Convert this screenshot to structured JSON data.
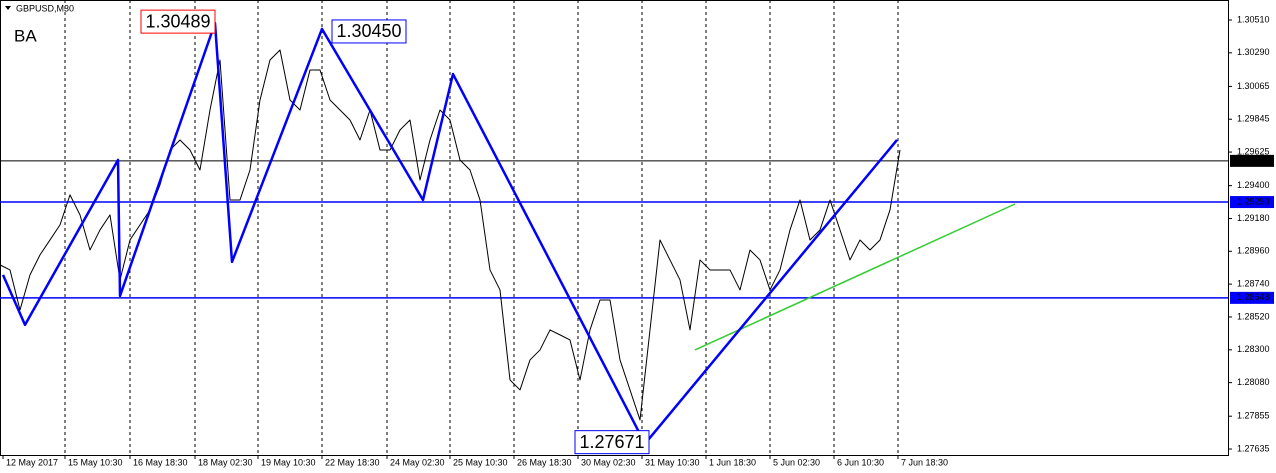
{
  "chart_data": {
    "type": "line",
    "title": "GBPUSD,M30",
    "annotation": "BA",
    "annotation_color": "#ff0000",
    "xlim": [
      0,
      122.8
    ],
    "ylim": [
      1.27595,
      1.30644
    ],
    "xticks": [
      {
        "value": 0.3,
        "label": "12 May 2017"
      },
      {
        "value": 6.5,
        "label": "15 May 10:30"
      },
      {
        "value": 13,
        "label": "16 May 18:30"
      },
      {
        "value": 19.5,
        "label": "18 May 02:30"
      },
      {
        "value": 25.8,
        "label": "19 May 10:30"
      },
      {
        "value": 32.2,
        "label": "22 May 18:30"
      },
      {
        "value": 38.7,
        "label": "24 May 02:30"
      },
      {
        "value": 45,
        "label": "25 May 10:30"
      },
      {
        "value": 51.4,
        "label": "26 May 18:30"
      },
      {
        "value": 57.8,
        "label": "30 May 02:30"
      },
      {
        "value": 64.2,
        "label": "31 May 10:30"
      },
      {
        "value": 70.6,
        "label": "1 Jun 18:30"
      },
      {
        "value": 77,
        "label": "5 Jun 02:30"
      },
      {
        "value": 83.4,
        "label": "6 Jun 10:30"
      },
      {
        "value": 89.8,
        "label": "7 Jun 18:30"
      }
    ],
    "yticks": [
      {
        "value": 1.3051,
        "label": "1.30510"
      },
      {
        "value": 1.3029,
        "label": "1.30290"
      },
      1.30065,
      1.29845,
      {
        "value": 1.29625,
        "label": "1.29625"
      },
      {
        "value": 1.294,
        "label": "1.29400"
      },
      {
        "value": 1.2918,
        "label": "1.29180"
      },
      {
        "value": 1.2896,
        "label": "1.28960"
      },
      {
        "value": 1.2874,
        "label": "1.28740"
      },
      {
        "value": 1.2852,
        "label": "1.28520"
      },
      {
        "value": 1.283,
        "label": "1.28300"
      },
      {
        "value": 1.2808,
        "label": "1.28080"
      },
      1.27855,
      1.27635
    ],
    "grid": true,
    "levels": [
      {
        "value": 1.29566,
        "color": "#000000"
      },
      {
        "value": 1.2929,
        "label": "1.29290",
        "color": "#0000ff"
      },
      {
        "value": 1.28648,
        "color": "#0000ff"
      }
    ],
    "price": {
      "color": "#000000",
      "x": [
        0,
        1,
        2,
        3,
        4,
        5,
        6,
        7,
        8,
        9,
        10,
        11,
        12,
        13,
        14,
        15,
        16,
        17,
        18,
        19,
        20,
        21,
        22,
        23,
        24,
        25,
        26,
        27,
        28,
        29,
        30,
        31,
        32,
        33,
        34,
        35,
        36,
        37,
        38,
        39,
        40,
        41,
        42,
        43,
        44,
        45,
        46,
        47,
        48,
        49,
        50,
        51,
        52,
        53,
        54,
        55,
        56,
        57,
        58,
        59,
        60,
        61,
        62,
        63,
        64,
        65,
        66,
        67,
        68,
        69,
        70,
        71,
        72,
        73,
        74,
        75,
        76,
        77,
        78,
        79,
        80,
        81,
        82,
        83,
        84,
        85,
        86,
        87,
        88,
        89,
        90
      ],
      "values": [
        1.28869,
        1.28835,
        1.28567,
        1.28802,
        1.28936,
        1.29036,
        1.29137,
        1.29338,
        1.29204,
        1.28969,
        1.29103,
        1.29204,
        1.28768,
        1.29036,
        1.29137,
        1.29237,
        1.29405,
        1.29639,
        1.29706,
        1.29639,
        1.29505,
        1.29907,
        1.30242,
        1.29304,
        1.29304,
        1.29505,
        1.29974,
        1.30242,
        1.30309,
        1.29974,
        1.29907,
        1.30175,
        1.30175,
        1.29974,
        1.29907,
        1.2984,
        1.29706,
        1.29907,
        1.29639,
        1.29639,
        1.29773,
        1.2984,
        1.29438,
        1.29706,
        1.29907,
        1.2984,
        1.29572,
        1.29505,
        1.29304,
        1.28835,
        1.28701,
        1.28098,
        1.28031,
        1.28232,
        1.28299,
        1.28433,
        1.284,
        1.28366,
        1.28098,
        1.28433,
        1.28634,
        1.28634,
        1.28232,
        1.28031,
        1.2783,
        1.28433,
        1.29036,
        1.28902,
        1.28768,
        1.28433,
        1.28902,
        1.28835,
        1.28835,
        1.28835,
        1.28701,
        1.28969,
        1.28902,
        1.28701,
        1.28835,
        1.29103,
        1.29304,
        1.29036,
        1.29103,
        1.29304,
        1.29103,
        1.28902,
        1.29036,
        1.28969,
        1.29036,
        1.29237,
        1.29639
      ]
    },
    "zigzag": {
      "color": "#0000ff",
      "x": [
        0.3,
        2.5,
        11.8,
        12,
        21.5,
        23.2,
        32.2,
        42.3,
        45.3,
        64.5,
        89.7
      ],
      "values": [
        1.28802,
        1.28467,
        1.29572,
        1.28661,
        1.30489,
        1.28889,
        1.3045,
        1.29304,
        1.30148,
        1.27671,
        1.29706
      ],
      "value_labels": [
        null,
        null,
        null,
        null,
        "1.30489",
        null,
        "1.30450",
        null,
        null,
        "1.27671",
        null
      ],
      "value_label_colors": [
        null,
        null,
        null,
        null,
        "#ff0000",
        null,
        "#0000ff",
        null,
        null,
        "#0000ff",
        null
      ]
    },
    "trendline": {
      "color": "#33cc33",
      "x": [
        69.5,
        101.5
      ],
      "values": [
        1.28299,
        1.29277
      ]
    }
  }
}
